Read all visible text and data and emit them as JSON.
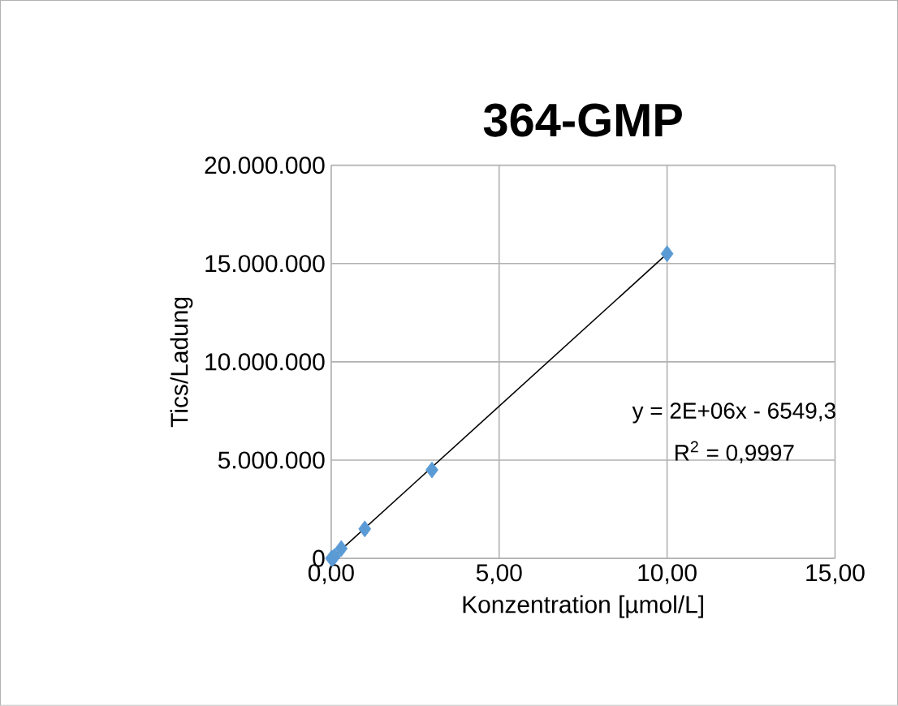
{
  "chart_data": {
    "type": "scatter",
    "title": "364-GMP",
    "xlabel": "Konzentration [µmol/L]",
    "ylabel": "Tics/Ladung",
    "series": [
      {
        "color": "#5b9bd5",
        "marker": "diamond",
        "x": [
          0.01,
          0.03,
          0.1,
          0.3,
          1,
          3,
          10
        ],
        "values": [
          0,
          0,
          100000,
          500000,
          1500000,
          4500000,
          15500000
        ]
      },
      {
        "type": "line",
        "color": "#000000",
        "marker": "none",
        "x": [
          0.01,
          10
        ],
        "values": [
          0,
          15500000
        ]
      }
    ],
    "xlim": [
      0,
      15
    ],
    "ylim": [
      0,
      20000000
    ],
    "xticks": [
      {
        "value": 0,
        "label": "0,00"
      },
      {
        "value": 5,
        "label": "5,00"
      },
      {
        "value": 10,
        "label": "10,00"
      },
      {
        "value": 15,
        "label": "15,00"
      }
    ],
    "yticks": [
      0,
      {
        "value": 5000000,
        "label": "5.000.000"
      },
      {
        "value": 10000000,
        "label": "10.000.000"
      },
      {
        "value": 15000000,
        "label": "15.000.000"
      },
      {
        "value": 20000000,
        "label": "20.000.000"
      }
    ],
    "grid": true,
    "annotations": [
      "y = 2E+06x - 6549,3",
      "R$^{2}$ = 0,9997"
    ]
  }
}
